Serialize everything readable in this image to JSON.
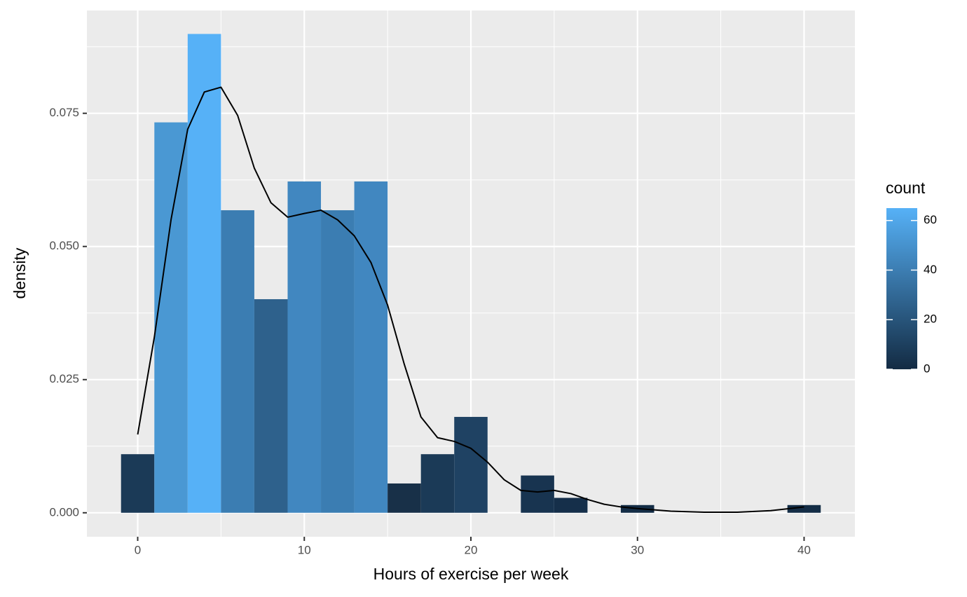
{
  "chart_data": {
    "type": "histogram",
    "xlabel": "Hours of exercise per week",
    "ylabel": "density",
    "bins": [
      -1,
      1,
      3,
      5,
      7,
      9,
      11,
      13,
      15,
      17,
      19,
      21,
      23,
      25,
      27,
      29,
      31,
      33,
      35,
      37,
      39,
      41
    ],
    "values": [
      0.011,
      0.0733,
      0.0899,
      0.0568,
      0.0401,
      0.0622,
      0.0568,
      0.0622,
      0.0055,
      0.011,
      0.018,
      0,
      0.007,
      0.0028,
      0,
      0.00145,
      0,
      0,
      0,
      0,
      0.00145
    ],
    "colors": [
      "#1B3A57",
      "#4A98D3",
      "#56B1F7",
      "#3B7DB2",
      "#2E618C",
      "#4187C0",
      "#3B7DB2",
      "#4187C0",
      "#183048",
      "#1B3A57",
      "#1F4263",
      "#132B43",
      "#183450",
      "#152F4A",
      "#132B43",
      "#142D46",
      "#132B43",
      "#132B43",
      "#132B43",
      "#132B43",
      "#142D46"
    ],
    "density_curve": {
      "color": "#000000",
      "x": [
        0,
        1,
        2,
        3,
        4,
        5,
        6,
        7,
        8,
        9,
        10,
        11,
        12,
        13,
        14,
        15,
        16,
        17,
        18,
        19,
        20,
        21,
        22,
        23,
        24,
        25,
        26,
        27,
        28,
        29,
        30,
        32,
        34,
        36,
        38,
        40
      ],
      "y": [
        0.0147,
        0.033,
        0.055,
        0.072,
        0.079,
        0.0799,
        0.0746,
        0.0647,
        0.0582,
        0.0555,
        0.0562,
        0.0568,
        0.055,
        0.052,
        0.047,
        0.039,
        0.0279,
        0.018,
        0.0141,
        0.0134,
        0.0121,
        0.0095,
        0.0062,
        0.0042,
        0.0039,
        0.0042,
        0.0036,
        0.0025,
        0.0016,
        0.0011,
        0.0008,
        0.0003,
        0.0001,
        0.0001,
        0.0004,
        0.0011
      ]
    },
    "xlim": [
      -3.05,
      43.05
    ],
    "xticks": [
      0,
      10,
      20,
      30,
      40
    ],
    "x_minor_breaks": [
      5,
      15,
      25,
      35
    ],
    "ylim": [
      -0.0045,
      0.0943
    ],
    "yticks": [
      {
        "value": 0,
        "label": "0.000"
      },
      {
        "value": 0.025,
        "label": "0.025"
      },
      {
        "value": 0.05,
        "label": "0.050"
      },
      {
        "value": 0.075,
        "label": "0.075"
      }
    ],
    "y_minor_breaks": [
      0.0125,
      0.0375,
      0.0625,
      0.0875
    ],
    "grid": true,
    "legend": {
      "title": "count",
      "position": "right",
      "low_color": "#132B43",
      "high_color": "#56B1F7",
      "limits": [
        0,
        65
      ],
      "ticks": [
        0,
        20,
        40,
        60
      ]
    }
  }
}
